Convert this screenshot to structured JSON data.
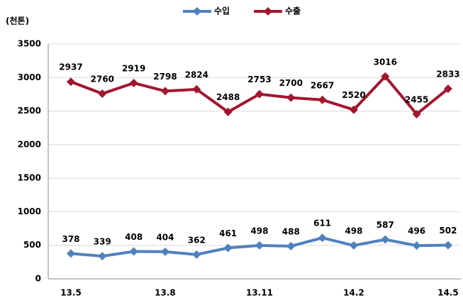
{
  "chart_data": {
    "type": "line",
    "y_label": "(천톤)",
    "categories": [
      "13.5",
      null,
      null,
      "13.8",
      null,
      null,
      "13.11",
      null,
      null,
      "14.2",
      null,
      null,
      "14.5"
    ],
    "series": [
      {
        "name": "수입",
        "color": "#4f81bd",
        "values": [
          378,
          339,
          408,
          404,
          362,
          461,
          498,
          488,
          611,
          498,
          587,
          496,
          502
        ]
      },
      {
        "name": "수출",
        "color": "#a3162f",
        "values": [
          2937,
          2760,
          2919,
          2798,
          2824,
          2488,
          2753,
          2700,
          2667,
          2520,
          3016,
          2455,
          2833
        ]
      }
    ],
    "ylim": [
      0,
      3500
    ],
    "yticks": [
      0,
      500,
      1000,
      1500,
      2000,
      2500,
      3000,
      3500
    ],
    "grid": true,
    "legend": "top"
  }
}
